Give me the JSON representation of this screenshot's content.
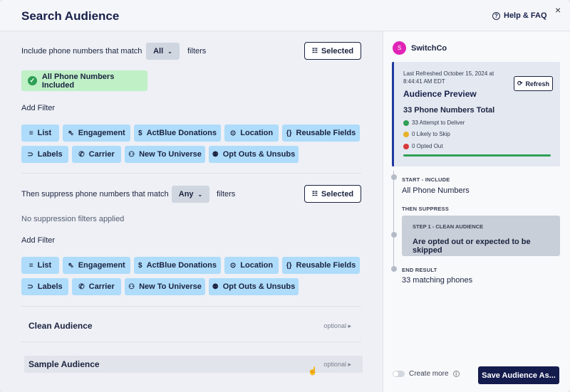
{
  "header": {
    "title": "Search Audience",
    "help": "Help & FAQ",
    "close": "×"
  },
  "include": {
    "label_before": "Include phone numbers that match",
    "match": "All",
    "label_after": "filters",
    "selected_label": "Selected",
    "status": "All Phone Numbers Included",
    "add_filter": "Add Filter",
    "chips": [
      "List",
      "Engagement",
      "ActBlue Donations",
      "Location",
      "Reusable Fields",
      "Labels",
      "Carrier",
      "New To Universe",
      "Opt Outs & Unsubs"
    ]
  },
  "suppress": {
    "label_before": "Then suppress phone numbers that match",
    "match": "Any",
    "label_after": "filters",
    "selected_label": "Selected",
    "status": "No suppression filters applied",
    "add_filter": "Add Filter",
    "chips": [
      "List",
      "Engagement",
      "ActBlue Donations",
      "Location",
      "Reusable Fields",
      "Labels",
      "Carrier",
      "New To Universe",
      "Opt Outs & Unsubs"
    ]
  },
  "sections": [
    {
      "name": "Clean Audience",
      "optional": "optional"
    },
    {
      "name": "Sample Audience",
      "optional": "optional"
    }
  ],
  "sidebar": {
    "org_initial": "S",
    "org_name": "SwitchCo",
    "preview": {
      "last_refreshed": "Last Refreshed October 15, 2024 at 8:44:41 AM EDT",
      "refresh_label": "Refresh",
      "title": "Audience Preview",
      "total": "33 Phone Numbers Total",
      "stats": [
        {
          "text": "33 Attempt to Deliver",
          "color": "#2fa055"
        },
        {
          "text": "0 Likely to Skip",
          "color": "#e7b22a"
        },
        {
          "text": "0 Opted Out",
          "color": "#d63a3a"
        }
      ],
      "deliver_fraction": 1.0
    },
    "timeline": {
      "start_caption": "START - INCLUDE",
      "start_value": "All Phone Numbers",
      "suppress_caption": "THEN SUPPRESS",
      "step_caption": "STEP 1 - CLEAN AUDIENCE",
      "step_value": "Are opted out or expected to be skipped",
      "end_caption": "END RESULT",
      "end_value": "33 matching phones"
    },
    "create_more": "Create more",
    "save_label": "Save Audience As..."
  }
}
